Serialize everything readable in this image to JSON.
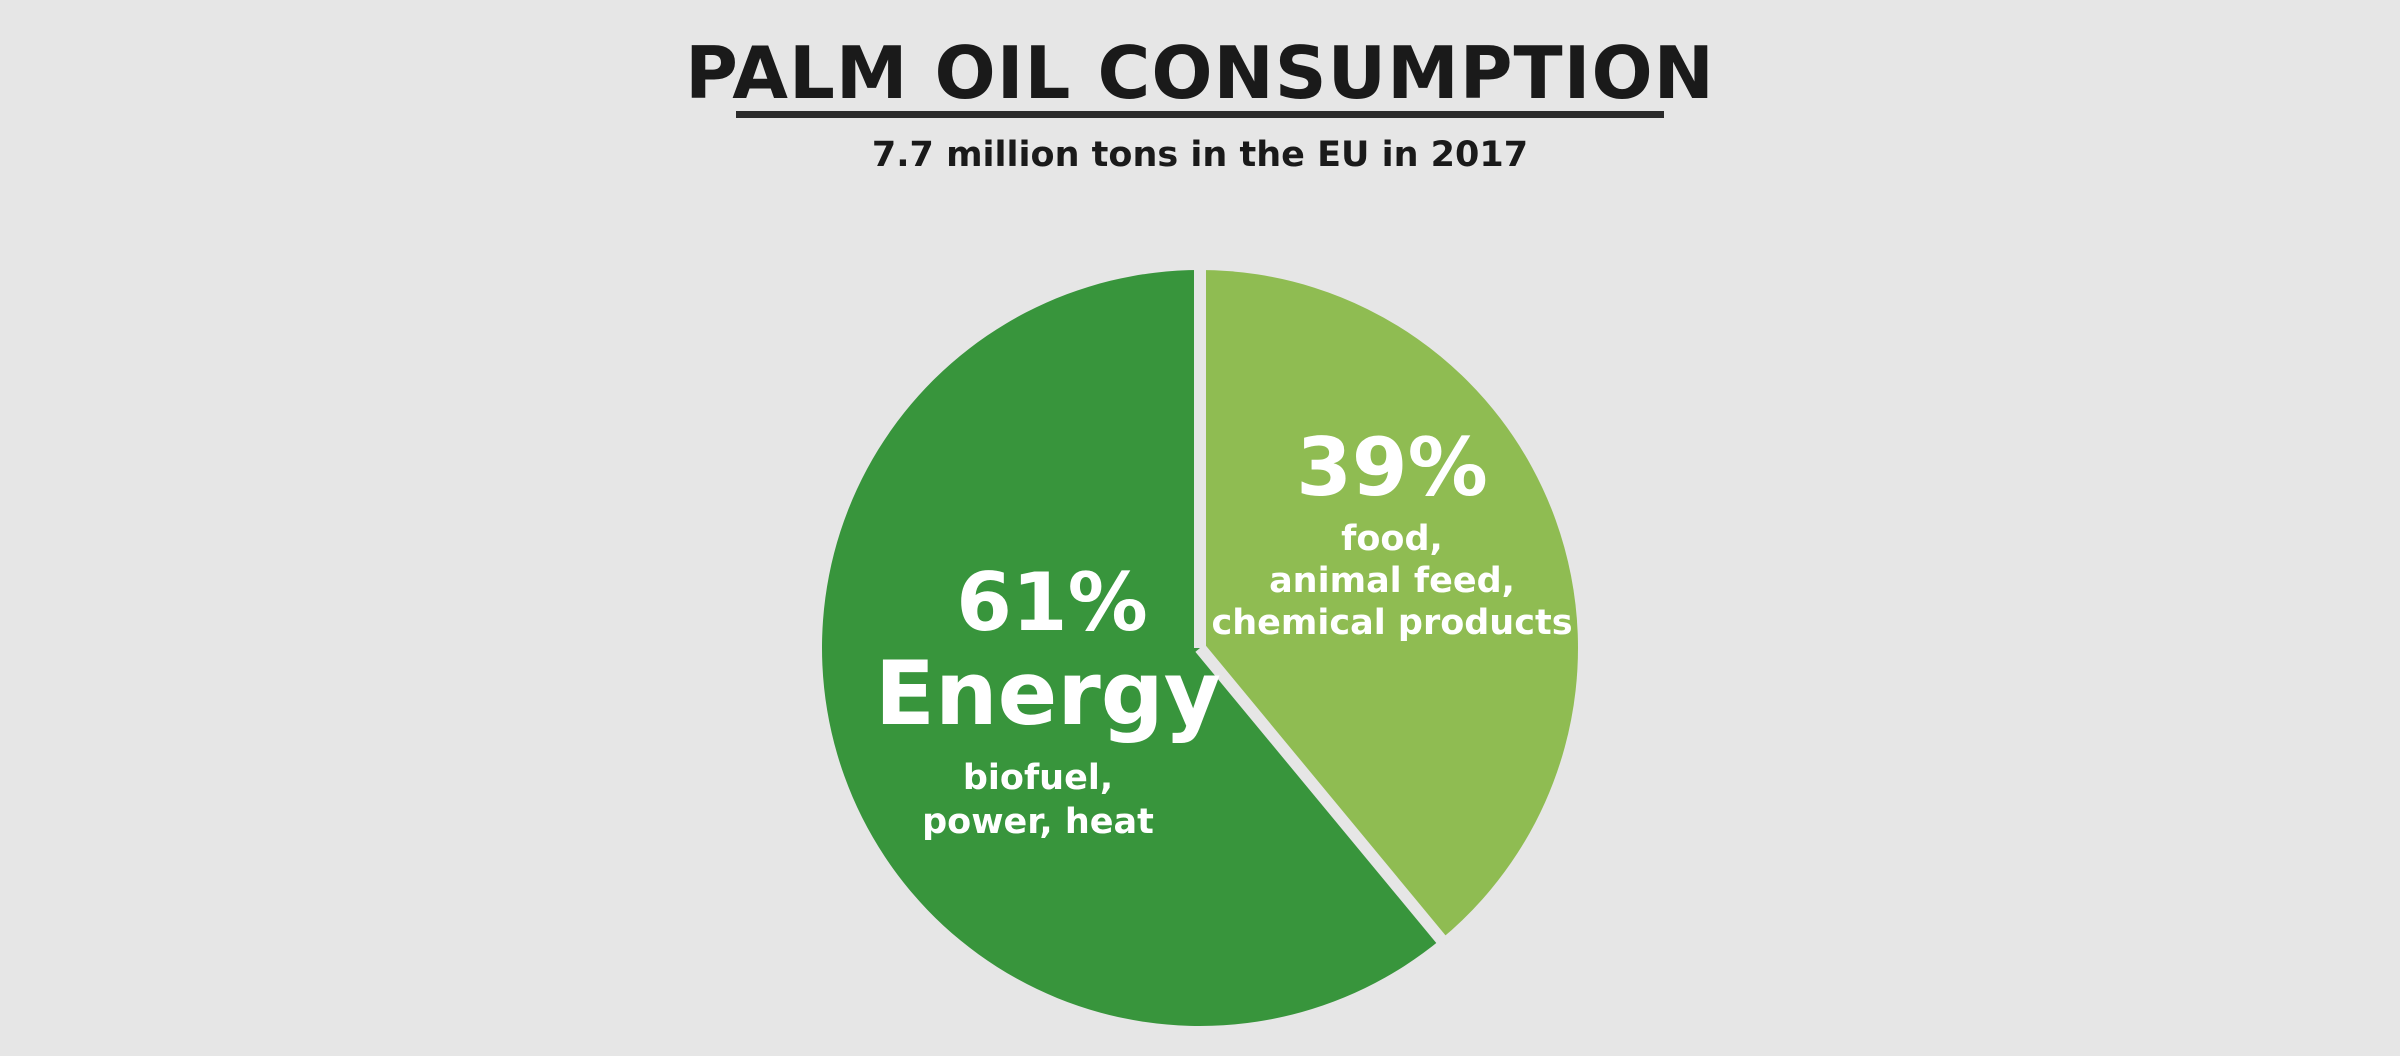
{
  "chart_data": {
    "type": "pie",
    "title": "PALM OIL CONSUMPTION",
    "subtitle": "7.7 million tons in the EU in 2017",
    "slices": [
      {
        "value": 39,
        "percent_label": "39%",
        "name": "",
        "description": [
          "food,",
          "animal feed,",
          "chemical products"
        ],
        "color": "#8fbc52"
      },
      {
        "value": 61,
        "percent_label": "61%",
        "name": "Energy",
        "description": [
          "biofuel,",
          "power, heat"
        ],
        "color": "#38953c"
      }
    ]
  },
  "colors": {
    "background": "#e6e6e6",
    "title": "#1a1a1a",
    "rule": "#2b2b2b",
    "slice_label": "#ffffff"
  }
}
